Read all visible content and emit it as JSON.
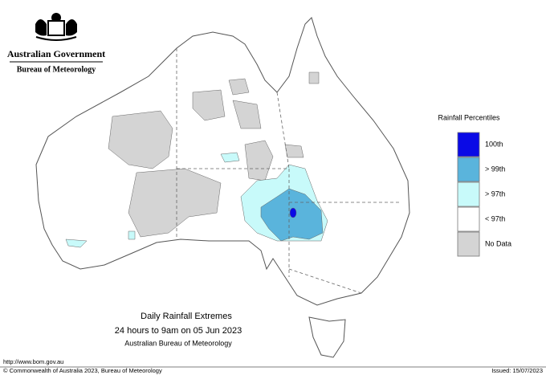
{
  "header": {
    "government": "Australian Government",
    "agency": "Bureau of Meteorology"
  },
  "legend": {
    "title": "Rainfall Percentiles",
    "items": [
      {
        "label": "100th",
        "color": "#0a0ae6"
      },
      {
        "label": "> 99th",
        "color": "#5ab4dc"
      },
      {
        "label": "> 97th",
        "color": "#c8fafa"
      },
      {
        "label": "< 97th",
        "color": "#ffffff"
      },
      {
        "label": "No Data",
        "color": "#d4d4d4"
      }
    ]
  },
  "caption": {
    "title": "Daily Rainfall Extremes",
    "period": "24 hours to 9am on 05 Jun 2023",
    "source": "Australian Bureau of Meteorology"
  },
  "footer": {
    "url": "http://www.bom.gov.au",
    "copyright": "© Commonwealth of Australia 2023, Bureau of Meteorology",
    "issued": "Issued: 15/07/2023"
  }
}
